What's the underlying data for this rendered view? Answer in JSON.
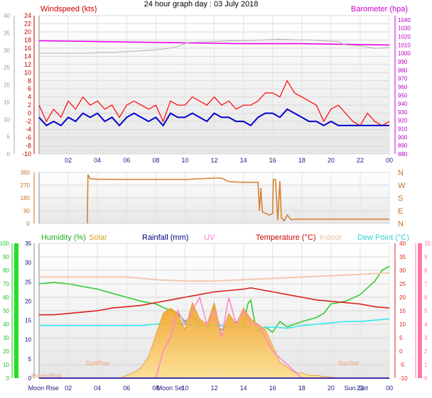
{
  "title": "24 hour graph day : 03 July 2018",
  "colors": {
    "wind": "#ff0000",
    "windAvg": "#0000cc",
    "gust": "#ff0000",
    "baro": "#e020e0",
    "baroTrace": "#bbbbbb",
    "dir": "#e08020",
    "humidity": "#22cc22",
    "solar": "#f5b020",
    "rain": "#000080",
    "uv": "#ff88cc",
    "temp": "#cc2020",
    "indoor": "#f0c0a0",
    "dew": "#30e0e0",
    "axisGreen": "#22c422",
    "axisLime": "#22e022",
    "axisRed": "#dd2020",
    "axisPink": "#ff77aa",
    "axisMag": "#dd22dd",
    "tickBlue": "#202080",
    "tickGray": "#999999"
  },
  "chart_data": [
    {
      "type": "line",
      "id": "wind_baro",
      "legend": {
        "left": "Windspeed (kts)",
        "right": "Barometer (hpa)"
      },
      "x_ticks": [
        "02",
        "04",
        "06",
        "08",
        "10",
        "12",
        "14",
        "16",
        "18",
        "20",
        "22",
        "00"
      ],
      "left_outer_ticks": [
        40,
        35,
        30,
        25,
        20,
        15,
        10,
        5,
        0
      ],
      "left_inner_ticks": [
        24,
        22,
        20,
        18,
        16,
        14,
        12,
        10,
        8,
        6,
        4,
        2,
        0,
        -2,
        -4,
        -6,
        -8,
        -10
      ],
      "left_inner_labels": [
        "24",
        "22",
        "20",
        "18",
        "16",
        "14",
        "12",
        "10",
        "8",
        "6",
        "4",
        "2",
        "0",
        "-2",
        "-4",
        "-6",
        "-8",
        "-10"
      ],
      "right_ticks": [
        1040,
        1030,
        1020,
        1010,
        1000,
        990,
        980,
        970,
        960,
        950,
        940,
        930,
        920,
        910,
        900,
        890,
        880
      ],
      "right_labels": [
        "1040",
        "1030",
        "1020",
        "1010",
        "1000",
        "990",
        "980",
        "970",
        "960",
        "950",
        "940",
        "930",
        "920",
        "910",
        "900",
        "890",
        "880"
      ],
      "ylim_wind": [
        -10,
        24
      ],
      "ylim_baro": [
        880,
        1045
      ],
      "series": [
        {
          "name": "Barometer",
          "axis": "baro",
          "x": [
            0,
            2,
            4,
            6,
            8,
            10,
            12,
            14,
            16,
            18,
            20,
            22,
            24
          ],
          "values": [
            1015,
            1014.5,
            1014,
            1013.5,
            1013,
            1012.5,
            1012,
            1011.5,
            1011.5,
            1011.5,
            1011,
            1010.5,
            1010
          ]
        },
        {
          "name": "",
          "axis": "baro",
          "x": [
            0,
            3,
            4.2,
            5,
            7,
            8.5,
            9.5,
            10.2,
            12,
            13,
            14,
            15.5,
            16.5,
            17.5,
            18.5,
            19.5,
            20.5,
            21,
            22,
            23,
            24
          ],
          "values": [
            1000,
            1000,
            1001,
            1001,
            1003,
            1005,
            1008,
            1013,
            1014,
            1015,
            1015,
            1016,
            1017,
            1016,
            1016,
            1015,
            1014,
            1010,
            1009,
            1006,
            1007
          ]
        },
        {
          "name": "Windspeed",
          "axis": "wind",
          "x": [
            0,
            0.5,
            1,
            1.5,
            2,
            2.5,
            3,
            3.5,
            4,
            4.5,
            5,
            5.5,
            6,
            6.5,
            7,
            7.5,
            8,
            8.5,
            9,
            9.5,
            10,
            10.5,
            11,
            11.5,
            12,
            12.5,
            13,
            13.5,
            14,
            14.5,
            15,
            15.5,
            16,
            16.5,
            17,
            17.5,
            18,
            18.5,
            19,
            19.5,
            20,
            20.5,
            21,
            21.5,
            22,
            22.5,
            23,
            23.5,
            24
          ],
          "values": [
            2,
            -2,
            1,
            -1,
            3,
            1,
            4,
            2,
            3,
            1,
            2,
            -1,
            2,
            3,
            2,
            1,
            2,
            -2,
            3,
            2,
            2,
            4,
            3,
            2,
            4,
            2,
            3,
            1,
            2,
            2,
            3,
            5,
            5,
            4,
            8,
            5,
            4,
            3,
            2,
            -2,
            1,
            2,
            0,
            -2,
            -3,
            0,
            -2,
            -3,
            -2
          ]
        },
        {
          "name": "Wind avg",
          "axis": "wind",
          "x": [
            0,
            0.5,
            1,
            1.5,
            2,
            2.5,
            3,
            3.5,
            4,
            4.5,
            5,
            5.5,
            6,
            6.5,
            7,
            7.5,
            8,
            8.5,
            9,
            9.5,
            10,
            10.5,
            11,
            11.5,
            12,
            12.5,
            13,
            13.5,
            14,
            14.5,
            15,
            15.5,
            16,
            16.5,
            17,
            17.5,
            18,
            18.5,
            19,
            19.5,
            20,
            20.5,
            21,
            21.5,
            22,
            22.5,
            23,
            23.5,
            24
          ],
          "values": [
            -1,
            -3,
            -2,
            -3,
            -1,
            -2,
            0,
            -1,
            0,
            -2,
            -1,
            -3,
            -1,
            0,
            -1,
            -2,
            -1,
            -3,
            0,
            -1,
            -1,
            0,
            -1,
            -2,
            0,
            -1,
            -1,
            -2,
            -2,
            -3,
            -1,
            0,
            0,
            -1,
            1,
            0,
            -1,
            -2,
            -2,
            -3,
            -2,
            -3,
            -3,
            -3,
            -3,
            -3,
            -3,
            -3,
            -3
          ]
        }
      ]
    },
    {
      "type": "line",
      "id": "direction",
      "x_ticks": [
        "02",
        "04",
        "06",
        "08",
        "10",
        "12",
        "14",
        "16",
        "18",
        "20",
        "22",
        "00"
      ],
      "left_ticks": [
        360,
        270,
        180,
        90,
        0
      ],
      "right_labels": [
        "N",
        "W",
        "S",
        "E",
        "N"
      ],
      "ylim": [
        0,
        360
      ],
      "series": [
        {
          "name": "Wind direction",
          "x": [
            0,
            3.3,
            3.35,
            3.5,
            4,
            6,
            8,
            10,
            11,
            12,
            12.5,
            13,
            14,
            15,
            15.1,
            15.2,
            15.3,
            15.8,
            16,
            16.05,
            16.2,
            16.35,
            16.5,
            16.6,
            16.8,
            17,
            17.3,
            17.5,
            18,
            20,
            22,
            24
          ],
          "values": [
            null,
            0,
            345,
            315,
            312,
            310,
            310,
            310,
            315,
            320,
            320,
            295,
            290,
            290,
            90,
            250,
            80,
            60,
            70,
            310,
            310,
            20,
            300,
            40,
            20,
            60,
            25,
            30,
            30,
            30,
            30,
            30
          ]
        }
      ]
    },
    {
      "type": "line",
      "id": "temp_humidity",
      "legend": [
        "Humidity (%)",
        "Solar",
        "Rainfall (mm)",
        "UV",
        "Temperature (°C)",
        "Indoor",
        "Dew Point (°C)"
      ],
      "x_ticks": [
        "Moon Rise",
        "02",
        "04",
        "06",
        "08",
        "Moon Set",
        "10",
        "12",
        "14",
        "16",
        "18",
        "20",
        "Sun",
        "Set",
        "22",
        "00"
      ],
      "events": [
        "Moon Rise",
        "SunRise",
        "Moon Set",
        "SunSet"
      ],
      "left_humidity_ticks": [
        100,
        90,
        80,
        70,
        60,
        50,
        40,
        30,
        20,
        10,
        0
      ],
      "left_rain_ticks": [
        35,
        30,
        25,
        20,
        15,
        10,
        5,
        0
      ],
      "right_temp_ticks": [
        40,
        35,
        30,
        25,
        20,
        15,
        10,
        5,
        0,
        -5,
        -10
      ],
      "right_uv_ticks": [
        10,
        9,
        8,
        7,
        6,
        5,
        4,
        3,
        2,
        1,
        0
      ],
      "series": [
        {
          "name": "Humidity",
          "axis": "humidity",
          "x": [
            0,
            1,
            2,
            3,
            4,
            5,
            6,
            7,
            8,
            9,
            9.5,
            10,
            10.5,
            11,
            11.5,
            12,
            12.5,
            13,
            13.5,
            14,
            14.3,
            14.5,
            14.8,
            15,
            15.5,
            16,
            16.5,
            17,
            17.5,
            18,
            19,
            19.5,
            20,
            21,
            22,
            23,
            23.5,
            24
          ],
          "values": [
            70,
            71,
            70,
            68,
            66,
            63,
            60,
            57,
            55,
            50,
            48,
            42,
            46,
            40,
            38,
            40,
            36,
            38,
            42,
            38,
            55,
            58,
            40,
            35,
            38,
            34,
            42,
            38,
            40,
            42,
            45,
            48,
            55,
            57,
            62,
            72,
            80,
            83
          ]
        },
        {
          "name": "Temperature",
          "axis": "temp",
          "x": [
            0,
            1,
            2,
            3,
            4,
            5,
            6,
            7,
            8,
            9,
            10,
            11,
            12,
            13,
            14,
            14.5,
            15,
            16,
            17,
            18,
            19,
            20,
            21,
            22,
            23,
            24
          ],
          "values": [
            13.5,
            13.5,
            14,
            14.5,
            15,
            16,
            16.5,
            17,
            18,
            19,
            20,
            21,
            22,
            22.5,
            23,
            23.5,
            23,
            22,
            21,
            20,
            19,
            18.5,
            18,
            17.5,
            16.5,
            16
          ]
        },
        {
          "name": "Indoor",
          "axis": "temp",
          "x": [
            0,
            2,
            4,
            6,
            8,
            10,
            12,
            14,
            16,
            18,
            20,
            22,
            24
          ],
          "values": [
            27.5,
            27.5,
            27.5,
            27.5,
            26.5,
            26,
            26,
            26.5,
            27,
            27.5,
            28,
            28.5,
            29
          ]
        },
        {
          "name": "Dew Point",
          "axis": "temp",
          "x": [
            0,
            1,
            2,
            3,
            4,
            5,
            6,
            7,
            8,
            9,
            10,
            11,
            12,
            13,
            14,
            15,
            16,
            17,
            18,
            19,
            20,
            21,
            22,
            23,
            24
          ],
          "values": [
            9.5,
            9.5,
            9.5,
            9.5,
            9.5,
            9.5,
            9.5,
            9.5,
            10,
            10.5,
            10,
            9,
            10,
            9,
            9,
            8.5,
            9,
            8.5,
            9.5,
            10,
            10.5,
            11,
            11,
            11.5,
            12
          ]
        },
        {
          "name": "Solar",
          "axis": "solar",
          "x": [
            0,
            5.5,
            6,
            6.5,
            7,
            7.5,
            8,
            8.5,
            9,
            9.5,
            10,
            10.5,
            11,
            11.5,
            12,
            12.5,
            13,
            13.5,
            14,
            14.5,
            15,
            15.5,
            16,
            16.5,
            17,
            17.5,
            18,
            18.5,
            19,
            19.5,
            20,
            20.5,
            24
          ],
          "values": [
            0,
            0,
            0.5,
            1,
            2,
            4,
            8,
            12,
            13,
            12,
            9,
            14,
            11,
            10,
            14,
            8,
            12,
            10,
            13,
            11,
            10,
            9,
            6,
            3,
            2,
            1,
            1,
            0.5,
            0.5,
            0.3,
            0.2,
            0,
            0
          ]
        },
        {
          "name": "UV",
          "axis": "uv",
          "x": [
            0,
            8,
            8.5,
            9,
            9.5,
            10,
            10.5,
            11,
            11.5,
            12,
            12.5,
            13,
            13.5,
            14,
            14.5,
            15,
            15.5,
            16,
            16.5,
            17,
            17.5,
            18,
            24
          ],
          "values": [
            0,
            0,
            2,
            3,
            5,
            4,
            5,
            6,
            4,
            5,
            3,
            6,
            4,
            5,
            4,
            4,
            3,
            2,
            1.5,
            1,
            0.5,
            0,
            0
          ]
        },
        {
          "name": "Rainfall",
          "axis": "rain",
          "x": [
            0,
            24
          ],
          "values": [
            0,
            0
          ]
        }
      ]
    }
  ]
}
